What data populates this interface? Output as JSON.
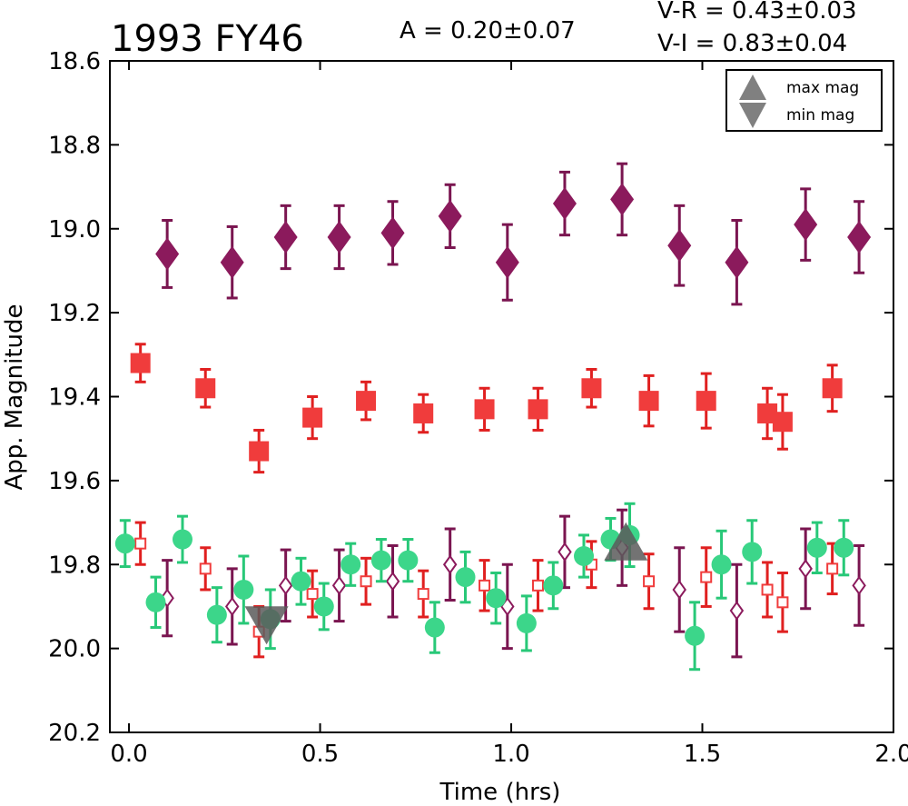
{
  "chart_data": {
    "type": "scatter",
    "title": "1993 FY46",
    "stats": {
      "amplitude": "A  = 0.20±0.07",
      "v_r": "V-R = 0.43±0.03",
      "v_i": "V-I  = 0.83±0.04"
    },
    "xlabel": "Time (hrs)",
    "ylabel": "App. Magnitude",
    "xlim": [
      -0.05,
      2.0
    ],
    "ylim": [
      20.2,
      18.6
    ],
    "y_inverted": true,
    "xticks": [
      "0.0",
      "0.5",
      "1.0",
      "1.5",
      "2.0"
    ],
    "yticks": [
      "18.6",
      "18.8",
      "19.0",
      "19.2",
      "19.4",
      "19.6",
      "19.8",
      "20.0",
      "20.2"
    ],
    "xtick_values": [
      0.0,
      0.5,
      1.0,
      1.5,
      2.0
    ],
    "ytick_values": [
      18.6,
      18.8,
      19.0,
      19.2,
      19.4,
      19.6,
      19.8,
      20.0,
      20.2
    ],
    "legend": {
      "placement": "top-right",
      "entries": [
        {
          "label": "max mag",
          "marker": "triangle-up",
          "color": "#808080"
        },
        {
          "label": "min mag",
          "marker": "triangle-down",
          "color": "#808080"
        }
      ]
    },
    "series": [
      {
        "marker": "diamond",
        "filled": true,
        "color": "#8b1a5c",
        "errcolor": "#7a1550",
        "points": [
          {
            "x": 0.1,
            "y": 19.06,
            "err": 0.08
          },
          {
            "x": 0.27,
            "y": 19.08,
            "err": 0.085
          },
          {
            "x": 0.41,
            "y": 19.02,
            "err": 0.075
          },
          {
            "x": 0.55,
            "y": 19.02,
            "err": 0.075
          },
          {
            "x": 0.69,
            "y": 19.01,
            "err": 0.075
          },
          {
            "x": 0.84,
            "y": 18.97,
            "err": 0.075
          },
          {
            "x": 0.99,
            "y": 19.08,
            "err": 0.09
          },
          {
            "x": 1.14,
            "y": 18.94,
            "err": 0.075
          },
          {
            "x": 1.29,
            "y": 18.93,
            "err": 0.085
          },
          {
            "x": 1.44,
            "y": 19.04,
            "err": 0.095
          },
          {
            "x": 1.59,
            "y": 19.08,
            "err": 0.1
          },
          {
            "x": 1.77,
            "y": 18.99,
            "err": 0.085
          },
          {
            "x": 1.91,
            "y": 19.02,
            "err": 0.085
          }
        ]
      },
      {
        "marker": "square",
        "filled": true,
        "color": "#f03c3c",
        "errcolor": "#e02020",
        "points": [
          {
            "x": 0.03,
            "y": 19.32,
            "err": 0.045
          },
          {
            "x": 0.2,
            "y": 19.38,
            "err": 0.045
          },
          {
            "x": 0.34,
            "y": 19.53,
            "err": 0.05
          },
          {
            "x": 0.48,
            "y": 19.45,
            "err": 0.05
          },
          {
            "x": 0.62,
            "y": 19.41,
            "err": 0.045
          },
          {
            "x": 0.77,
            "y": 19.44,
            "err": 0.045
          },
          {
            "x": 0.93,
            "y": 19.43,
            "err": 0.05
          },
          {
            "x": 1.07,
            "y": 19.43,
            "err": 0.05
          },
          {
            "x": 1.21,
            "y": 19.38,
            "err": 0.045
          },
          {
            "x": 1.36,
            "y": 19.41,
            "err": 0.06
          },
          {
            "x": 1.51,
            "y": 19.41,
            "err": 0.065
          },
          {
            "x": 1.67,
            "y": 19.44,
            "err": 0.06
          },
          {
            "x": 1.71,
            "y": 19.46,
            "err": 0.065
          },
          {
            "x": 1.84,
            "y": 19.38,
            "err": 0.055
          }
        ]
      },
      {
        "marker": "circle",
        "filled": true,
        "color": "#3cd68a",
        "errcolor": "#28c878",
        "points": [
          {
            "x": -0.01,
            "y": 19.75,
            "err": 0.055
          },
          {
            "x": 0.07,
            "y": 19.89,
            "err": 0.06
          },
          {
            "x": 0.14,
            "y": 19.74,
            "err": 0.055
          },
          {
            "x": 0.23,
            "y": 19.92,
            "err": 0.065
          },
          {
            "x": 0.3,
            "y": 19.86,
            "err": 0.08
          },
          {
            "x": 0.37,
            "y": 19.93,
            "err": 0.07
          },
          {
            "x": 0.45,
            "y": 19.84,
            "err": 0.055
          },
          {
            "x": 0.51,
            "y": 19.9,
            "err": 0.055
          },
          {
            "x": 0.58,
            "y": 19.8,
            "err": 0.05
          },
          {
            "x": 0.66,
            "y": 19.79,
            "err": 0.05
          },
          {
            "x": 0.73,
            "y": 19.79,
            "err": 0.05
          },
          {
            "x": 0.8,
            "y": 19.95,
            "err": 0.06
          },
          {
            "x": 0.88,
            "y": 19.83,
            "err": 0.06
          },
          {
            "x": 0.96,
            "y": 19.88,
            "err": 0.06
          },
          {
            "x": 1.04,
            "y": 19.94,
            "err": 0.065
          },
          {
            "x": 1.11,
            "y": 19.85,
            "err": 0.055
          },
          {
            "x": 1.19,
            "y": 19.78,
            "err": 0.05
          },
          {
            "x": 1.26,
            "y": 19.74,
            "err": 0.05
          },
          {
            "x": 1.31,
            "y": 19.73,
            "err": 0.075
          },
          {
            "x": 1.48,
            "y": 19.97,
            "err": 0.08
          },
          {
            "x": 1.55,
            "y": 19.8,
            "err": 0.08
          },
          {
            "x": 1.63,
            "y": 19.77,
            "err": 0.075
          },
          {
            "x": 1.8,
            "y": 19.76,
            "err": 0.06
          },
          {
            "x": 1.87,
            "y": 19.76,
            "err": 0.065
          }
        ]
      },
      {
        "marker": "square",
        "filled": false,
        "color": "#f03c3c",
        "errcolor": "#e02020",
        "points": [
          {
            "x": 0.03,
            "y": 19.75,
            "err": 0.05
          },
          {
            "x": 0.2,
            "y": 19.81,
            "err": 0.05
          },
          {
            "x": 0.34,
            "y": 19.96,
            "err": 0.06
          },
          {
            "x": 0.48,
            "y": 19.87,
            "err": 0.055
          },
          {
            "x": 0.62,
            "y": 19.84,
            "err": 0.055
          },
          {
            "x": 0.77,
            "y": 19.87,
            "err": 0.055
          },
          {
            "x": 0.93,
            "y": 19.85,
            "err": 0.06
          },
          {
            "x": 1.07,
            "y": 19.85,
            "err": 0.06
          },
          {
            "x": 1.21,
            "y": 19.8,
            "err": 0.055
          },
          {
            "x": 1.36,
            "y": 19.84,
            "err": 0.065
          },
          {
            "x": 1.51,
            "y": 19.83,
            "err": 0.07
          },
          {
            "x": 1.67,
            "y": 19.86,
            "err": 0.065
          },
          {
            "x": 1.71,
            "y": 19.89,
            "err": 0.07
          },
          {
            "x": 1.84,
            "y": 19.81,
            "err": 0.06
          }
        ]
      },
      {
        "marker": "diamond",
        "filled": false,
        "color": "#8b1a5c",
        "errcolor": "#7a1550",
        "points": [
          {
            "x": 0.1,
            "y": 19.88,
            "err": 0.09
          },
          {
            "x": 0.27,
            "y": 19.9,
            "err": 0.09
          },
          {
            "x": 0.41,
            "y": 19.85,
            "err": 0.085
          },
          {
            "x": 0.55,
            "y": 19.85,
            "err": 0.085
          },
          {
            "x": 0.69,
            "y": 19.84,
            "err": 0.085
          },
          {
            "x": 0.84,
            "y": 19.8,
            "err": 0.085
          },
          {
            "x": 0.99,
            "y": 19.9,
            "err": 0.1
          },
          {
            "x": 1.14,
            "y": 19.77,
            "err": 0.085
          },
          {
            "x": 1.29,
            "y": 19.76,
            "err": 0.09
          },
          {
            "x": 1.44,
            "y": 19.86,
            "err": 0.1
          },
          {
            "x": 1.59,
            "y": 19.91,
            "err": 0.11
          },
          {
            "x": 1.77,
            "y": 19.81,
            "err": 0.095
          },
          {
            "x": 1.91,
            "y": 19.85,
            "err": 0.095
          }
        ]
      }
    ],
    "extrema": [
      {
        "type": "min",
        "x": 0.36,
        "y": 19.93,
        "color": "#5a5a5a"
      },
      {
        "type": "max",
        "x": 1.3,
        "y": 19.76,
        "color": "#5a5a5a"
      }
    ]
  }
}
